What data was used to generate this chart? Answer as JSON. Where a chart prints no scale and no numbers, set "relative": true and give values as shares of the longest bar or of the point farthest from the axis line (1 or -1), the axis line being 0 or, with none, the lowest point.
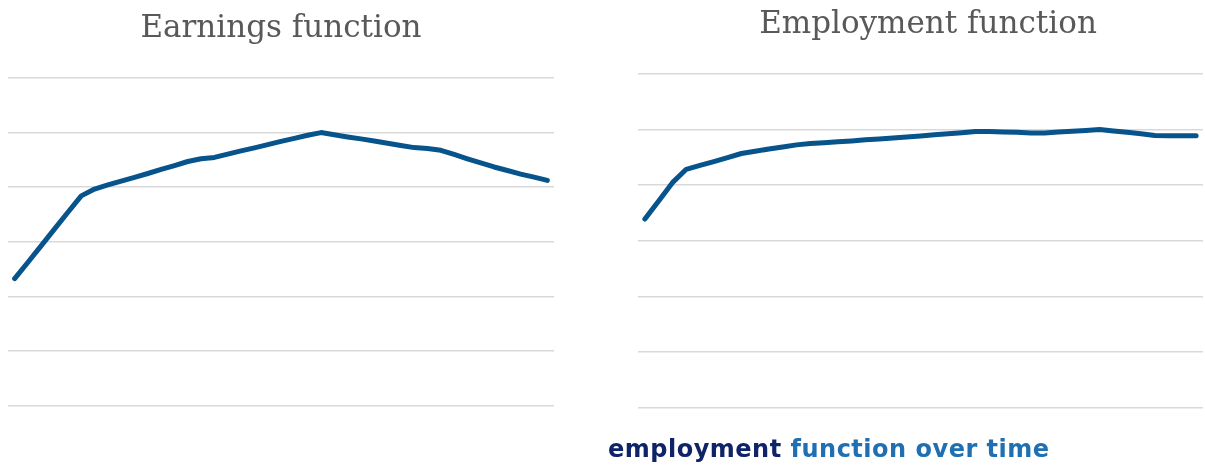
{
  "chart_data": [
    {
      "type": "line",
      "title": "Earnings function",
      "relative": true,
      "grid": "y",
      "marker": "none",
      "categories": [
        null,
        null,
        null,
        null,
        null,
        null,
        null,
        null,
        null,
        null,
        null,
        null,
        null,
        null,
        null,
        null,
        null,
        null,
        null,
        null,
        null,
        null,
        null,
        null,
        null,
        null,
        null,
        null,
        null,
        null,
        null,
        null,
        null,
        null,
        null,
        null,
        null,
        null,
        null,
        null,
        null
      ],
      "series": [
        {
          "color": "#07538b",
          "values": [
            0.465,
            0.525,
            0.586,
            0.647,
            0.708,
            0.768,
            0.793,
            0.808,
            0.822,
            0.836,
            0.85,
            0.865,
            0.879,
            0.894,
            0.904,
            0.909,
            0.921,
            0.933,
            0.944,
            0.956,
            0.968,
            0.979,
            0.99,
            1,
            0.992,
            0.984,
            0.977,
            0.969,
            0.961,
            0.953,
            0.945,
            0.942,
            0.935,
            0.92,
            0.904,
            0.889,
            0.874,
            0.861,
            0.848,
            0.837,
            0.825
          ]
        }
      ]
    },
    {
      "type": "line",
      "title": "Employment function",
      "relative": true,
      "grid": "y",
      "marker": "none",
      "categories": [
        null,
        null,
        null,
        null,
        null,
        null,
        null,
        null,
        null,
        null,
        null,
        null,
        null,
        null,
        null,
        null,
        null,
        null,
        null,
        null,
        null,
        null,
        null,
        null,
        null,
        null,
        null,
        null,
        null,
        null,
        null,
        null,
        null,
        null,
        null,
        null,
        null,
        null,
        null,
        null,
        null
      ],
      "series": [
        {
          "color": "#07538b",
          "values": [
            0.678,
            0.743,
            0.809,
            0.857,
            0.871,
            0.885,
            0.899,
            0.914,
            0.922,
            0.93,
            0.937,
            0.945,
            0.95,
            0.953,
            0.956,
            0.959,
            0.963,
            0.966,
            0.97,
            0.973,
            0.977,
            0.981,
            0.985,
            0.989,
            0.993,
            0.993,
            0.991,
            0.99,
            0.988,
            0.988,
            0.991,
            0.994,
            0.997,
            1,
            0.995,
            0.99,
            0.985,
            0.979,
            0.978,
            0.978,
            0.978
          ]
        }
      ],
      "annotations": [
        "employment function over time"
      ]
    }
  ]
}
